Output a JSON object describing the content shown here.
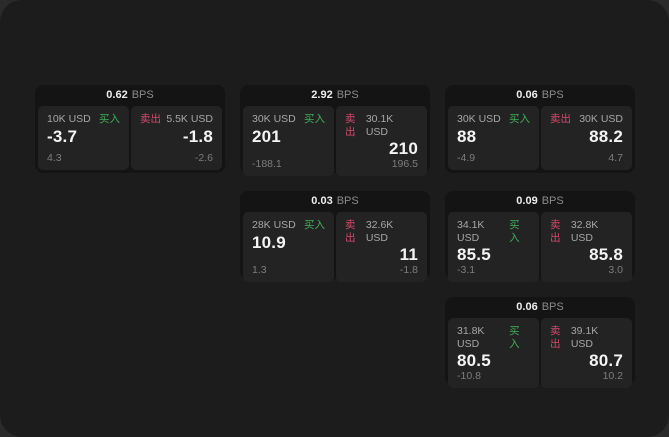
{
  "labels": {
    "bps_unit": "BPS",
    "buy": "买入",
    "sell": "卖出"
  },
  "colors": {
    "outer_bg": "#2a2a2a",
    "window_bg": "#1c1c1c",
    "card_bg": "#141414",
    "tile_bg": "#232323",
    "buy_green": "#3fae5a",
    "sell_red": "#d6486b"
  },
  "cards": [
    {
      "bps": "0.62",
      "buy": {
        "amount": "10K USD",
        "price": "-3.7",
        "delta": "4.3"
      },
      "sell": {
        "amount": "5.5K USD",
        "price": "-1.8",
        "delta": "-2.6"
      }
    },
    {
      "bps": "2.92",
      "buy": {
        "amount": "30K USD",
        "price": "201",
        "delta": "-188.1"
      },
      "sell": {
        "amount": "30.1K USD",
        "price": "210",
        "delta": "196.5"
      }
    },
    {
      "bps": "0.06",
      "buy": {
        "amount": "30K USD",
        "price": "88",
        "delta": "-4.9"
      },
      "sell": {
        "amount": "30K USD",
        "price": "88.2",
        "delta": "4.7"
      }
    },
    {
      "bps": "0.03",
      "buy": {
        "amount": "28K USD",
        "price": "10.9",
        "delta": "1.3"
      },
      "sell": {
        "amount": "32.6K USD",
        "price": "11",
        "delta": "-1.8"
      }
    },
    {
      "bps": "0.09",
      "buy": {
        "amount": "34.1K USD",
        "price": "85.5",
        "delta": "-3.1"
      },
      "sell": {
        "amount": "32.8K USD",
        "price": "85.8",
        "delta": "3.0"
      }
    },
    {
      "bps": "0.06",
      "buy": {
        "amount": "31.8K USD",
        "price": "80.5",
        "delta": "-10.8"
      },
      "sell": {
        "amount": "39.1K USD",
        "price": "80.7",
        "delta": "10.2"
      }
    }
  ]
}
